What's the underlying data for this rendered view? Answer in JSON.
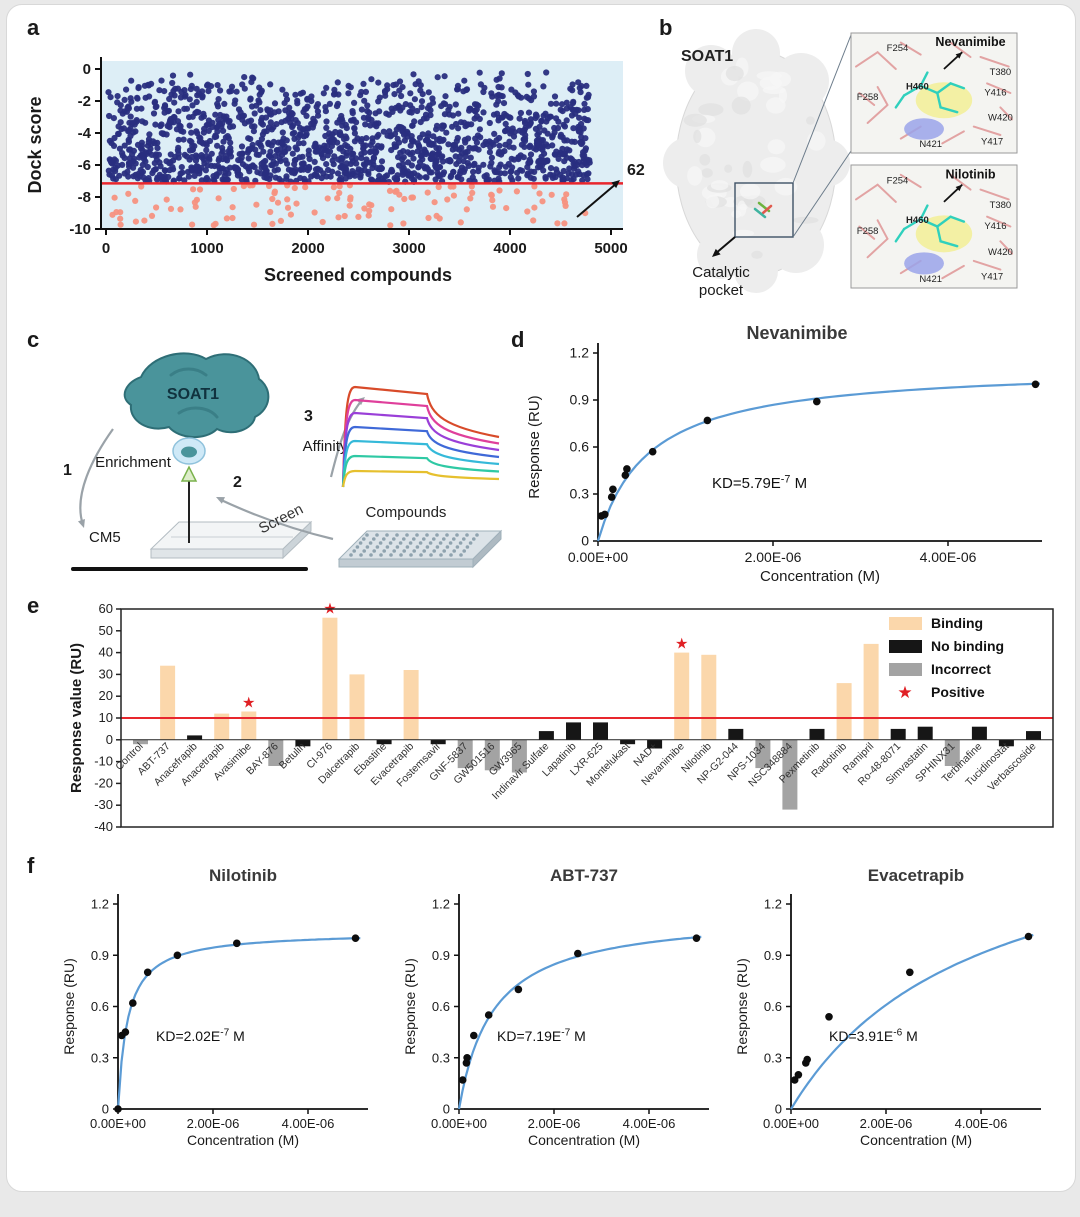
{
  "panel_labels": {
    "a": "a",
    "b": "b",
    "c": "c",
    "d": "d",
    "e": "e",
    "f": "f"
  },
  "panel_b": {
    "protein": "SOAT1",
    "pocket_line1": "Catalytic",
    "pocket_line2": "pocket",
    "insets": [
      {
        "ligand": "Nevanimibe",
        "residues": [
          "F254",
          "T380",
          "Y416",
          "W420",
          "Y417",
          "N421",
          "F258",
          "H460"
        ]
      },
      {
        "ligand": "Nilotinib",
        "residues": [
          "F254",
          "T380",
          "Y416",
          "W420",
          "Y417",
          "N421",
          "F258",
          "H460"
        ]
      }
    ]
  },
  "panel_c": {
    "protein": "SOAT1",
    "chip": "CM5",
    "compounds": "Compounds",
    "steps": [
      {
        "num": "1",
        "label": "Enrichment"
      },
      {
        "num": "2",
        "label": "Screen"
      },
      {
        "num": "3",
        "label": "Affinity"
      }
    ]
  },
  "chart_data": [
    {
      "id": "dock",
      "type": "scatter",
      "xlabel": "Screened compounds",
      "ylabel": "Dock score",
      "xlim": [
        0,
        5000
      ],
      "ylim": [
        -10,
        0
      ],
      "xticks": [
        0,
        1000,
        2000,
        3000,
        4000,
        5000
      ],
      "yticks": [
        0,
        -2,
        -4,
        -6,
        -8,
        -10
      ],
      "plot_bg": "#ddeef6",
      "threshold": {
        "y": -7.15,
        "color": "#e8262d"
      },
      "annotation": "62",
      "series": [
        {
          "name": "screened compounds",
          "color": "#292e80",
          "n": 1500,
          "x_range": [
            20,
            4790
          ],
          "y_range": [
            -0.2,
            -7.05
          ]
        },
        {
          "name": "hits below cutoff",
          "color": "#f5917f",
          "n": 115,
          "x_range": [
            20,
            4790
          ],
          "y_range": [
            -7.25,
            -9.9
          ]
        }
      ]
    },
    {
      "id": "nevanimibe",
      "type": "binding_curve",
      "title": "Nevanimibe",
      "xlabel": "Concentration (M)",
      "ylabel": "Response (RU)",
      "yticks": [
        0,
        0.3,
        0.6,
        0.9,
        1.2
      ],
      "xticks": [
        {
          "v": 0,
          "label": "0.00E+00"
        },
        {
          "v": 2e-06,
          "label": "2.00E-06"
        },
        {
          "v": 4e-06,
          "label": "4.00E-06"
        }
      ],
      "kd": {
        "prefix": "KD=5.79E",
        "exp": "-7",
        "suffix": " M"
      },
      "fit": {
        "kd": 5.79e-07,
        "rmax": 1.12
      },
      "line_color": "#5b9bd5",
      "points": [
        [
          3.9e-08,
          0.16
        ],
        [
          7.8e-08,
          0.17
        ],
        [
          1.56e-07,
          0.28
        ],
        [
          1.7e-07,
          0.33
        ],
        [
          3.12e-07,
          0.42
        ],
        [
          3.3e-07,
          0.46
        ],
        [
          6.25e-07,
          0.57
        ],
        [
          1.25e-06,
          0.77
        ],
        [
          2.5e-06,
          0.89
        ],
        [
          5e-06,
          1.0
        ]
      ]
    },
    {
      "id": "screen_bars",
      "type": "bar",
      "ylabel": "Response value (RU)",
      "ylim": [
        -40,
        60
      ],
      "yticks": [
        60,
        50,
        40,
        30,
        20,
        10,
        0,
        -10,
        -20,
        -30,
        -40
      ],
      "threshold": {
        "y": 10,
        "color": "#e8262d"
      },
      "colors": {
        "binding": "#fbd7ab",
        "none": "#161616",
        "incorrect": "#a3a3a3",
        "star": "#e02025"
      },
      "legend": [
        {
          "label": "Binding",
          "type": "binding"
        },
        {
          "label": "No binding",
          "type": "none"
        },
        {
          "label": "Incorrect",
          "type": "incorrect"
        },
        {
          "label": "Positive",
          "type": "star"
        }
      ],
      "bars": [
        {
          "name": "Control",
          "value": -2,
          "type": "incorrect"
        },
        {
          "name": "ABT-737",
          "value": 34,
          "type": "binding"
        },
        {
          "name": "Anacefrapib",
          "value": 2,
          "type": "none"
        },
        {
          "name": "Anacetrapib",
          "value": 12,
          "type": "binding"
        },
        {
          "name": "Avasimibe",
          "value": 13,
          "type": "binding",
          "star": true
        },
        {
          "name": "BAY-876",
          "value": -12,
          "type": "incorrect"
        },
        {
          "name": "Betulin",
          "value": -3,
          "type": "none"
        },
        {
          "name": "CI-976",
          "value": 56,
          "type": "binding",
          "star": true
        },
        {
          "name": "Dalcetrapib",
          "value": 30,
          "type": "binding"
        },
        {
          "name": "Ebastine",
          "value": -2,
          "type": "none"
        },
        {
          "name": "Evacetrapib",
          "value": 32,
          "type": "binding"
        },
        {
          "name": "Fostemsavir",
          "value": -2,
          "type": "none"
        },
        {
          "name": "GNF-5837",
          "value": -13,
          "type": "incorrect"
        },
        {
          "name": "GW501516",
          "value": -14,
          "type": "incorrect"
        },
        {
          "name": "GW3965",
          "value": -15,
          "type": "incorrect"
        },
        {
          "name": "Indinavir Sulfate",
          "value": 4,
          "type": "none"
        },
        {
          "name": "Lapatinib",
          "value": 8,
          "type": "none"
        },
        {
          "name": "LXR-625",
          "value": 8,
          "type": "none"
        },
        {
          "name": "Montelukast",
          "value": -2,
          "type": "none"
        },
        {
          "name": "NAD+",
          "value": -4,
          "type": "none"
        },
        {
          "name": "Nevanimibe",
          "value": 40,
          "type": "binding",
          "star": true
        },
        {
          "name": "Nilotinib",
          "value": 39,
          "type": "binding"
        },
        {
          "name": "NP-G2-044",
          "value": 5,
          "type": "none"
        },
        {
          "name": "NPS-1034",
          "value": -13,
          "type": "incorrect"
        },
        {
          "name": "NSC348884",
          "value": -32,
          "type": "incorrect"
        },
        {
          "name": "Pexmetinib",
          "value": 5,
          "type": "none"
        },
        {
          "name": "Radotinib",
          "value": 26,
          "type": "binding"
        },
        {
          "name": "Ramipril",
          "value": 44,
          "type": "binding"
        },
        {
          "name": "Ro-48-8071",
          "value": 5,
          "type": "none"
        },
        {
          "name": "Simvastatin",
          "value": 6,
          "type": "none"
        },
        {
          "name": "SPHINX31",
          "value": -12,
          "type": "incorrect"
        },
        {
          "name": "Terbinafine",
          "value": 6,
          "type": "none"
        },
        {
          "name": "Tucidinostat",
          "value": -3,
          "type": "none"
        },
        {
          "name": "Verbascoside",
          "value": 4,
          "type": "none"
        }
      ]
    },
    {
      "id": "nilotinib",
      "type": "binding_curve",
      "title": "Nilotinib",
      "xlabel": "Concentration (M)",
      "ylabel": "Response (RU)",
      "yticks": [
        0,
        0.3,
        0.6,
        0.9,
        1.2
      ],
      "xticks": [
        {
          "v": 0,
          "label": "0.00E+00"
        },
        {
          "v": 2e-06,
          "label": "2.00E-06"
        },
        {
          "v": 4e-06,
          "label": "4.00E-06"
        }
      ],
      "kd": {
        "prefix": "KD=2.02E",
        "exp": "-7",
        "suffix": " M"
      },
      "fit": {
        "kd": 2.02e-07,
        "rmax": 1.04
      },
      "line_color": "#5b9bd5",
      "points": [
        [
          0,
          0.0
        ],
        [
          7.8e-08,
          0.43
        ],
        [
          1.56e-07,
          0.45
        ],
        [
          3.12e-07,
          0.62
        ],
        [
          6.25e-07,
          0.8
        ],
        [
          1.25e-06,
          0.9
        ],
        [
          2.5e-06,
          0.97
        ],
        [
          5e-06,
          1.0
        ]
      ]
    },
    {
      "id": "abt737",
      "type": "binding_curve",
      "title": "ABT-737",
      "xlabel": "Concentration (M)",
      "ylabel": "Response (RU)",
      "yticks": [
        0,
        0.3,
        0.6,
        0.9,
        1.2
      ],
      "xticks": [
        {
          "v": 0,
          "label": "0.00E+00"
        },
        {
          "v": 2e-06,
          "label": "2.00E-06"
        },
        {
          "v": 4e-06,
          "label": "4.00E-06"
        }
      ],
      "kd": {
        "prefix": "KD=7.19E",
        "exp": "-7",
        "suffix": " M"
      },
      "fit": {
        "kd": 7.19e-07,
        "rmax": 1.15
      },
      "line_color": "#5b9bd5",
      "points": [
        [
          7.8e-08,
          0.17
        ],
        [
          1.56e-07,
          0.27
        ],
        [
          1.7e-07,
          0.3
        ],
        [
          3.12e-07,
          0.43
        ],
        [
          6.25e-07,
          0.55
        ],
        [
          1.25e-06,
          0.7
        ],
        [
          2.5e-06,
          0.91
        ],
        [
          5e-06,
          1.0
        ]
      ]
    },
    {
      "id": "evacetrapib",
      "type": "binding_curve",
      "title": "Evacetrapib",
      "xlabel": "Concentration (M)",
      "ylabel": "Response (RU)",
      "yticks": [
        0,
        0.3,
        0.6,
        0.9,
        1.2
      ],
      "xticks": [
        {
          "v": 0,
          "label": "0.00E+00"
        },
        {
          "v": 2e-06,
          "label": "2.00E-06"
        },
        {
          "v": 4e-06,
          "label": "4.00E-06"
        }
      ],
      "kd": {
        "prefix": "KD=3.91E",
        "exp": "-6",
        "suffix": " M"
      },
      "fit": {
        "kd": 3.91e-06,
        "rmax": 1.8
      },
      "line_color": "#5b9bd5",
      "points": [
        [
          7.8e-08,
          0.17
        ],
        [
          1.56e-07,
          0.2
        ],
        [
          3.12e-07,
          0.27
        ],
        [
          3.4e-07,
          0.29
        ],
        [
          8e-07,
          0.54
        ],
        [
          2.5e-06,
          0.8
        ],
        [
          5e-06,
          1.01
        ]
      ]
    }
  ]
}
